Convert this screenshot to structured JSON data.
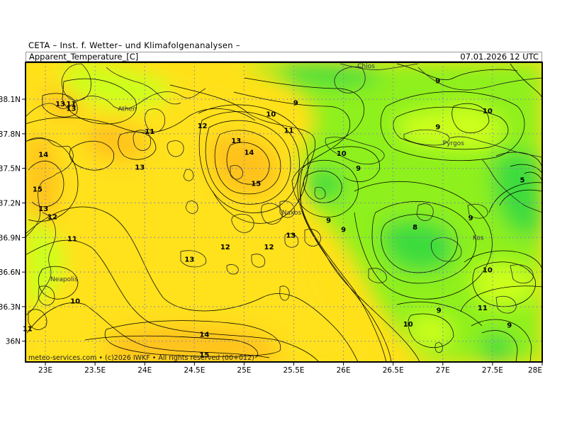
{
  "header": {
    "source": "CETA – Inst. f. Wetter– und Klimafolgenanalysen –",
    "title": "Apparent_Temperature_[C]",
    "datetime": "07.01.2026  12 UTC"
  },
  "footer": {
    "text": "meteo-services.com • (c)2026 IWKF • All rights reserved (00+012)"
  },
  "map": {
    "lon_range": [
      22.8,
      28.0
    ],
    "lat_range": [
      35.82,
      38.42
    ],
    "lat_ticks": [
      {
        "lat": 38.1,
        "label": "38.1N"
      },
      {
        "lat": 37.8,
        "label": "37.8N"
      },
      {
        "lat": 37.5,
        "label": "37.5N"
      },
      {
        "lat": 37.2,
        "label": "37.2N"
      },
      {
        "lat": 36.9,
        "label": "36.9N"
      },
      {
        "lat": 36.6,
        "label": "36.6N"
      },
      {
        "lat": 36.3,
        "label": "36.3N"
      },
      {
        "lat": 36.0,
        "label": "36N"
      }
    ],
    "lon_ticks": [
      {
        "lon": 23.0,
        "label": "23E"
      },
      {
        "lon": 23.5,
        "label": "23.5E"
      },
      {
        "lon": 24.0,
        "label": "24E"
      },
      {
        "lon": 24.5,
        "label": "24.5E"
      },
      {
        "lon": 25.0,
        "label": "25E"
      },
      {
        "lon": 25.5,
        "label": "25.5E"
      },
      {
        "lon": 26.0,
        "label": "26E"
      },
      {
        "lon": 26.5,
        "label": "26.5E"
      },
      {
        "lon": 27.0,
        "label": "27E"
      },
      {
        "lon": 27.5,
        "label": "27.5E"
      },
      {
        "lon": 28.0,
        "label": "28E"
      }
    ],
    "grid": true,
    "colors": {
      "very_warm": "#ffc21a",
      "warm": "#ffe11a",
      "mild": "#ccff1a",
      "cool": "#8ef01a",
      "cold": "#3cdc3c"
    },
    "cities": [
      {
        "name": "Athen",
        "lon": 23.73,
        "lat": 38.0
      },
      {
        "name": "Chios",
        "lon": 26.14,
        "lat": 38.37
      },
      {
        "name": "Pyrgos",
        "lon": 27.0,
        "lat": 37.7
      },
      {
        "name": "Naxos",
        "lon": 25.38,
        "lat": 37.1
      },
      {
        "name": "Kos",
        "lon": 27.3,
        "lat": 36.88
      },
      {
        "name": "Neapolis",
        "lon": 23.05,
        "lat": 36.52
      }
    ],
    "contour_labels": [
      {
        "v": "13",
        "lon": 23.15,
        "lat": 38.06
      },
      {
        "v": "13",
        "lon": 23.26,
        "lat": 38.02
      },
      {
        "v": "11",
        "lon": 23.26,
        "lat": 38.06
      },
      {
        "v": "12",
        "lon": 24.58,
        "lat": 37.87
      },
      {
        "v": "11",
        "lon": 24.05,
        "lat": 37.82
      },
      {
        "v": "14",
        "lon": 22.98,
        "lat": 37.62
      },
      {
        "v": "13",
        "lon": 24.92,
        "lat": 37.74
      },
      {
        "v": "14",
        "lon": 25.05,
        "lat": 37.64
      },
      {
        "v": "13",
        "lon": 23.95,
        "lat": 37.51
      },
      {
        "v": "15",
        "lon": 25.12,
        "lat": 37.37
      },
      {
        "v": "15",
        "lon": 22.92,
        "lat": 37.32
      },
      {
        "v": "13",
        "lon": 22.98,
        "lat": 37.15
      },
      {
        "v": "12",
        "lon": 23.07,
        "lat": 37.08
      },
      {
        "v": "11",
        "lon": 23.27,
        "lat": 36.89
      },
      {
        "v": "12",
        "lon": 24.81,
        "lat": 36.82
      },
      {
        "v": "12",
        "lon": 25.25,
        "lat": 36.82
      },
      {
        "v": "13",
        "lon": 25.47,
        "lat": 36.92
      },
      {
        "v": "13",
        "lon": 24.45,
        "lat": 36.71
      },
      {
        "v": "10",
        "lon": 23.3,
        "lat": 36.35
      },
      {
        "v": "11",
        "lon": 22.82,
        "lat": 36.11
      },
      {
        "v": "14",
        "lon": 24.6,
        "lat": 36.06
      },
      {
        "v": "15",
        "lon": 24.6,
        "lat": 35.88
      },
      {
        "v": "9",
        "lon": 25.52,
        "lat": 38.07
      },
      {
        "v": "10",
        "lon": 25.27,
        "lat": 37.97
      },
      {
        "v": "11",
        "lon": 25.45,
        "lat": 37.83
      },
      {
        "v": "10",
        "lon": 25.98,
        "lat": 37.63
      },
      {
        "v": "9",
        "lon": 26.15,
        "lat": 37.5
      },
      {
        "v": "9",
        "lon": 25.85,
        "lat": 37.05
      },
      {
        "v": "9",
        "lon": 26.0,
        "lat": 36.97
      },
      {
        "v": "8",
        "lon": 26.72,
        "lat": 36.99
      },
      {
        "v": "9",
        "lon": 26.95,
        "lat": 38.26
      },
      {
        "v": "10",
        "lon": 27.45,
        "lat": 38.0
      },
      {
        "v": "9",
        "lon": 26.95,
        "lat": 37.86
      },
      {
        "v": "5",
        "lon": 27.8,
        "lat": 37.4
      },
      {
        "v": "9",
        "lon": 27.28,
        "lat": 37.07
      },
      {
        "v": "10",
        "lon": 27.45,
        "lat": 36.62
      },
      {
        "v": "9",
        "lon": 26.96,
        "lat": 36.27
      },
      {
        "v": "11",
        "lon": 27.4,
        "lat": 36.29
      },
      {
        "v": "10",
        "lon": 26.65,
        "lat": 36.15
      },
      {
        "v": "9",
        "lon": 27.67,
        "lat": 36.14
      }
    ]
  }
}
